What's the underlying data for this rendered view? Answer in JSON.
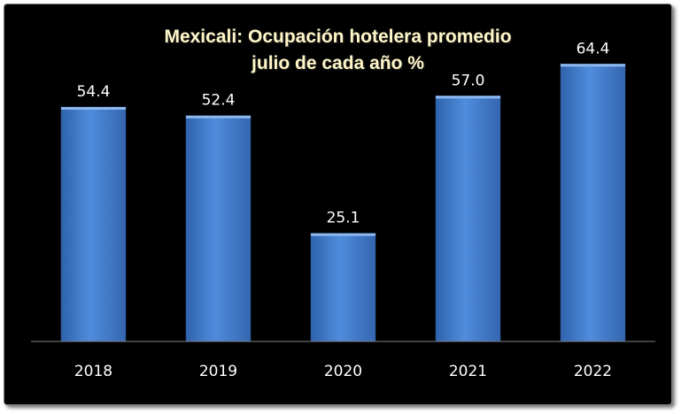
{
  "chart_data": {
    "type": "bar",
    "title": "Mexicali: Ocupación hotelera promedio",
    "subtitle": "julio de cada año %",
    "categories": [
      "2018",
      "2019",
      "2020",
      "2021",
      "2022"
    ],
    "values": [
      54.4,
      52.4,
      25.1,
      57.0,
      64.4
    ],
    "value_labels": [
      "54.4",
      "52.4",
      "25.1",
      "57.0",
      "64.4"
    ],
    "xlabel": "",
    "ylabel": "",
    "ylim": [
      0,
      70
    ],
    "grid": false,
    "legend": "none",
    "colors": {
      "bar": "#4a86d4",
      "background": "#000000",
      "title": "#fff6c8",
      "text": "#ffffff"
    }
  }
}
